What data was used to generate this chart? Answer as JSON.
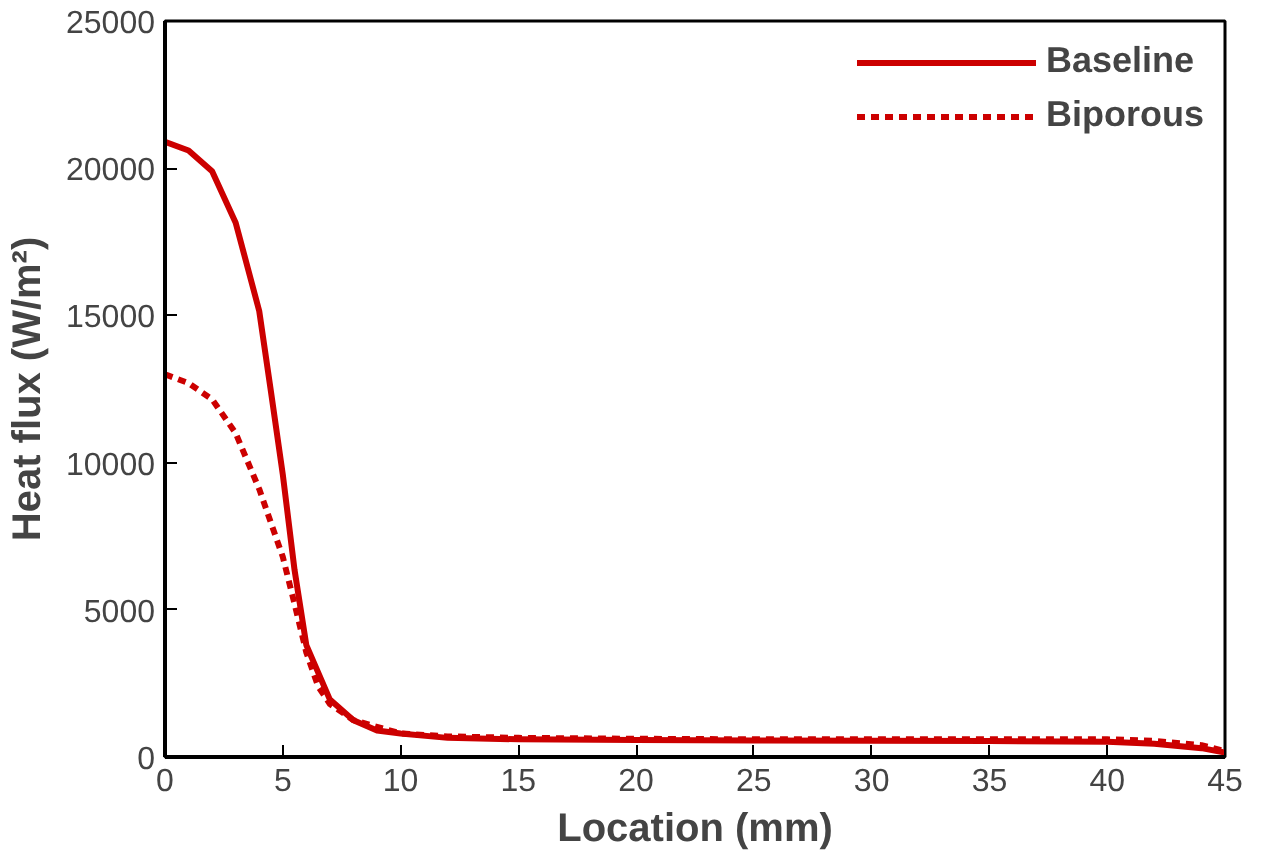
{
  "chart_data": {
    "type": "line",
    "xlabel": "Location (mm)",
    "ylabel": "Heat flux (W/m²)",
    "xlim": [
      0,
      45
    ],
    "xticks": [
      0,
      5,
      10,
      15,
      20,
      25,
      30,
      35,
      40,
      45
    ],
    "ylim": [
      0,
      25000
    ],
    "yticks": [
      0,
      5000,
      10000,
      15000,
      20000,
      25000
    ],
    "grid": false,
    "legend": "top right",
    "series": [
      {
        "name": "Baseline",
        "color": "#cc0000",
        "line_style": "solid",
        "x": [
          0,
          1,
          2,
          3,
          4,
          4.5,
          5,
          5.5,
          6,
          7,
          8,
          9,
          10,
          12,
          15,
          20,
          25,
          30,
          35,
          40,
          42,
          44,
          45
        ],
        "values": [
          20900,
          20600,
          19900,
          18150,
          15150,
          12400,
          9600,
          6350,
          3800,
          1950,
          1250,
          900,
          800,
          650,
          600,
          580,
          560,
          550,
          540,
          520,
          450,
          300,
          150
        ]
      },
      {
        "name": "Biporous",
        "color": "#cc0000",
        "line_style": "dashed",
        "x": [
          0,
          1,
          2,
          3,
          4,
          5,
          5.5,
          6,
          6.5,
          7,
          8,
          10,
          12,
          15,
          20,
          25,
          30,
          35,
          40,
          42,
          44,
          45
        ],
        "values": [
          13000,
          12700,
          12150,
          11000,
          9100,
          6800,
          5200,
          3550,
          2400,
          1800,
          1250,
          800,
          700,
          650,
          620,
          600,
          600,
          600,
          600,
          550,
          400,
          200
        ]
      }
    ]
  }
}
